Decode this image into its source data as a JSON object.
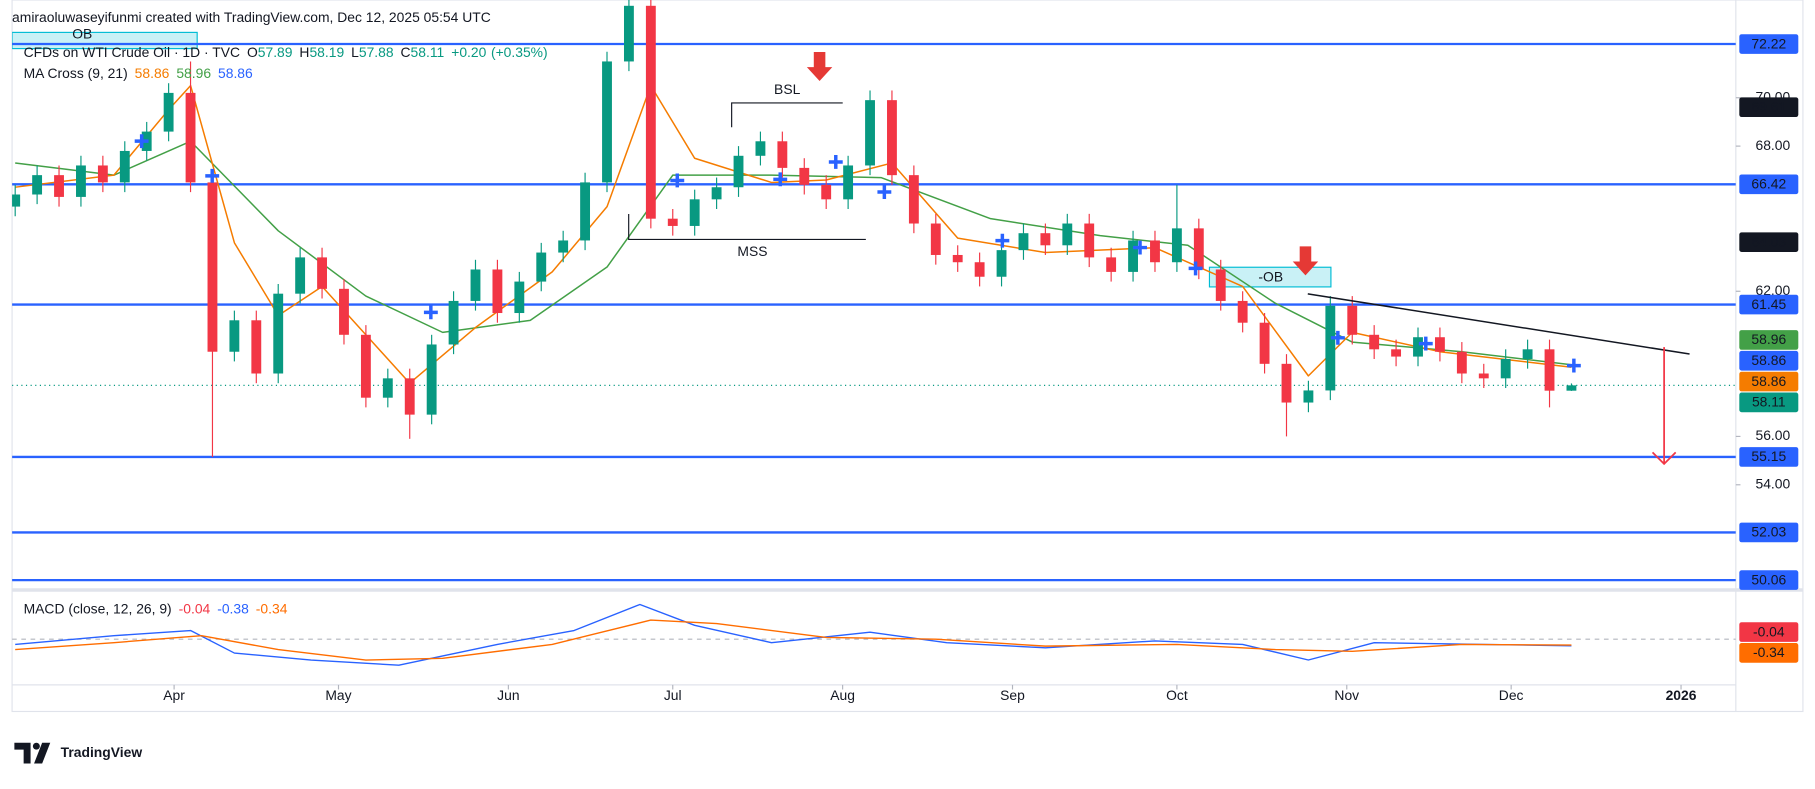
{
  "chart_data": {
    "type": "candlestick",
    "attribution": "amiraoluwaseyifunmi created with TradingView.com, Dec 12, 2025 05:54 UTC",
    "title": "CFDs on WTI Crude Oil · 1D · TVC",
    "header": {
      "o_label": "O",
      "open": 57.89,
      "h_label": "H",
      "high": 58.19,
      "l_label": "L",
      "low": 57.88,
      "c_label": "C",
      "close": 58.11,
      "change": {
        "value": 0.2,
        "label": "+0.20"
      },
      "change_pct": {
        "value": 0.35,
        "label": "(+0.35%)"
      }
    },
    "up_color": "#089981",
    "down_color": "#f23645",
    "x": [
      2,
      6,
      10,
      14,
      18,
      22,
      26,
      30,
      34,
      38,
      42,
      46,
      50,
      54,
      58,
      62,
      66,
      70,
      74,
      78,
      82,
      86,
      90,
      94,
      98,
      102,
      106,
      110,
      114,
      118,
      122,
      126,
      130,
      134,
      138,
      142,
      146,
      150,
      154,
      158,
      162,
      166,
      170,
      174,
      178,
      182,
      186,
      190,
      194,
      198,
      202,
      206,
      210,
      214,
      218,
      222,
      226,
      230,
      234,
      238,
      242,
      246,
      250,
      254,
      258,
      262,
      266,
      270,
      274,
      278,
      282,
      286
    ],
    "open": [
      65.5,
      66.0,
      66.8,
      65.9,
      67.2,
      66.5,
      67.8,
      68.6,
      70.2,
      66.5,
      59.5,
      60.8,
      58.6,
      61.9,
      63.4,
      62.1,
      60.2,
      57.6,
      58.4,
      56.9,
      59.8,
      61.6,
      62.9,
      61.1,
      62.4,
      63.6,
      64.1,
      66.5,
      71.5,
      73.8,
      65.0,
      64.7,
      65.8,
      66.3,
      67.6,
      68.2,
      67.1,
      66.4,
      65.8,
      67.2,
      69.9,
      66.8,
      64.8,
      63.5,
      63.2,
      62.6,
      63.7,
      64.4,
      63.9,
      64.8,
      63.4,
      62.8,
      64.1,
      63.2,
      64.6,
      62.9,
      61.6,
      60.7,
      59.0,
      57.4,
      57.9,
      61.4,
      60.2,
      59.6,
      59.3,
      60.1,
      59.5,
      58.6,
      58.4,
      59.2,
      59.6,
      57.89
    ],
    "high": [
      66.4,
      67.2,
      67.2,
      67.6,
      67.6,
      68.2,
      69.0,
      70.6,
      71.5,
      66.9,
      61.2,
      61.2,
      62.3,
      63.8,
      63.8,
      62.5,
      60.6,
      58.8,
      58.8,
      60.2,
      62.0,
      63.3,
      63.3,
      62.8,
      64.0,
      64.5,
      66.9,
      71.9,
      75.0,
      74.2,
      65.4,
      66.2,
      66.7,
      68.0,
      68.6,
      68.6,
      67.5,
      66.8,
      67.6,
      70.3,
      70.3,
      67.2,
      65.2,
      63.9,
      63.6,
      64.1,
      64.8,
      64.8,
      65.2,
      65.2,
      63.8,
      64.5,
      64.5,
      66.4,
      65.0,
      63.3,
      62.0,
      61.1,
      59.4,
      58.3,
      61.8,
      61.8,
      60.6,
      60.0,
      60.5,
      60.5,
      59.9,
      59.0,
      59.6,
      60.0,
      60.0,
      58.19
    ],
    "low": [
      65.1,
      65.6,
      65.5,
      65.5,
      66.1,
      66.1,
      67.4,
      68.2,
      66.1,
      55.15,
      59.1,
      58.2,
      58.2,
      61.5,
      61.7,
      59.8,
      57.2,
      57.2,
      55.9,
      56.5,
      59.4,
      61.2,
      60.7,
      60.7,
      62.0,
      63.2,
      63.7,
      66.1,
      71.1,
      64.6,
      64.3,
      64.3,
      65.4,
      65.9,
      67.2,
      66.7,
      66.0,
      65.4,
      65.4,
      66.8,
      66.4,
      64.4,
      63.1,
      62.8,
      62.2,
      62.2,
      63.3,
      63.5,
      63.5,
      63.0,
      62.4,
      62.4,
      62.8,
      62.8,
      62.5,
      61.2,
      60.3,
      58.6,
      56.0,
      57.0,
      57.5,
      59.8,
      59.2,
      58.9,
      58.9,
      59.1,
      58.2,
      58.0,
      58.0,
      58.8,
      57.2,
      57.88
    ],
    "close": [
      66.0,
      66.8,
      65.9,
      67.2,
      66.5,
      67.8,
      68.6,
      70.2,
      66.5,
      59.5,
      60.8,
      58.6,
      61.9,
      63.4,
      62.1,
      60.2,
      57.6,
      58.4,
      56.9,
      59.8,
      61.6,
      62.9,
      61.1,
      62.4,
      63.6,
      64.1,
      66.5,
      71.5,
      73.8,
      65.0,
      64.7,
      65.8,
      66.3,
      67.6,
      68.2,
      67.1,
      66.4,
      65.8,
      67.2,
      69.9,
      66.8,
      64.8,
      63.5,
      63.2,
      62.6,
      63.7,
      64.4,
      63.9,
      64.8,
      63.4,
      62.8,
      64.1,
      63.2,
      64.6,
      62.9,
      61.6,
      60.7,
      59.0,
      57.4,
      57.9,
      61.4,
      60.2,
      59.6,
      59.3,
      60.1,
      59.5,
      58.6,
      58.4,
      59.2,
      59.6,
      57.89,
      58.11
    ],
    "xlim": [
      1.43,
      316
    ],
    "xticks": [
      {
        "value": 31,
        "label": "Apr"
      },
      {
        "value": 61,
        "label": "May"
      },
      {
        "value": 92,
        "label": "Jun"
      },
      {
        "value": 122,
        "label": "Jul"
      },
      {
        "value": 153,
        "label": "Aug"
      },
      {
        "value": 184,
        "label": "Sep"
      },
      {
        "value": 214,
        "label": "Oct"
      },
      {
        "value": 245,
        "label": "Nov"
      },
      {
        "value": 275,
        "label": "Dec"
      },
      {
        "value": 306,
        "label": "2026"
      }
    ],
    "ylim": [
      49.65,
      74.04
    ],
    "yticks": [
      {
        "value": 54,
        "label": "54.00"
      },
      {
        "value": 56,
        "label": "56.00"
      },
      {
        "value": 62,
        "label": "62.00"
      },
      {
        "value": 68,
        "label": "68.00"
      },
      {
        "value": 70,
        "label": "70.00"
      }
    ],
    "ma_label": "MA Cross (9, 21)",
    "ma_fast": {
      "color": "#f57c00",
      "x": [
        2,
        20,
        30,
        34,
        42,
        50,
        58,
        66,
        74,
        86,
        100,
        110,
        118,
        126,
        140,
        150,
        162,
        174,
        190,
        210,
        226,
        238,
        246,
        262,
        286
      ],
      "values": [
        66.3,
        66.8,
        69.5,
        70.5,
        64.0,
        61.0,
        62.2,
        60.2,
        58.2,
        60.5,
        62.8,
        65.5,
        70.5,
        67.5,
        66.5,
        66.6,
        67.3,
        64.2,
        63.6,
        63.8,
        62.2,
        58.5,
        60.3,
        59.5,
        58.86
      ]
    },
    "ma_slow": {
      "color": "#43a047",
      "x": [
        2,
        20,
        34,
        50,
        66,
        80,
        96,
        110,
        122,
        140,
        160,
        180,
        200,
        216,
        232,
        246,
        266,
        286
      ],
      "values": [
        67.3,
        66.8,
        68.2,
        64.5,
        61.8,
        60.3,
        60.8,
        63.0,
        66.8,
        66.8,
        66.7,
        65.0,
        64.3,
        63.9,
        61.5,
        59.9,
        59.5,
        58.96
      ]
    },
    "levels": {
      "color": "#2962ff",
      "values": [
        72.22,
        66.42,
        61.45,
        55.15,
        52.03,
        50.06
      ]
    },
    "price_badges": [
      {
        "value": 69.61,
        "color": "#131722"
      },
      {
        "value": 64.03,
        "color": "#131722"
      },
      {
        "value": 58.96,
        "color": "#43a047"
      },
      {
        "value": 58.86,
        "color": "#2962ff"
      },
      {
        "value": 58.86,
        "color": "#f57c00"
      },
      {
        "value": 58.11,
        "color": "#089981"
      }
    ],
    "annotations": {
      "ob_top": "OB",
      "bsl": "BSL",
      "mss": "MSS",
      "ob": "-OB"
    },
    "macd": {
      "label": "MACD (close, 12, 26, 9)",
      "histogram": -0.04,
      "histogram_color": "#f23645",
      "ylim": [
        -2.5,
        2.5
      ],
      "macd": {
        "color": "#2962ff",
        "x": [
          2,
          20,
          34,
          42,
          56,
          72,
          90,
          104,
          116,
          126,
          140,
          158,
          172,
          190,
          210,
          226,
          238,
          250,
          270,
          286
        ],
        "values": [
          -0.3,
          0.2,
          0.5,
          -0.8,
          -1.2,
          -1.5,
          -0.3,
          0.5,
          2.0,
          0.8,
          -0.2,
          0.4,
          -0.2,
          -0.5,
          -0.1,
          -0.3,
          -1.2,
          -0.2,
          -0.3,
          -0.38
        ]
      },
      "signal": {
        "color": "#ff6d00",
        "x": [
          2,
          20,
          36,
          50,
          66,
          80,
          100,
          118,
          130,
          150,
          170,
          190,
          214,
          232,
          246,
          266,
          286
        ],
        "values": [
          -0.6,
          -0.2,
          0.2,
          -0.6,
          -1.2,
          -1.1,
          -0.3,
          1.1,
          0.9,
          0.1,
          0.0,
          -0.4,
          -0.3,
          -0.6,
          -0.7,
          -0.3,
          -0.34
        ]
      }
    },
    "brand": "TradingView"
  }
}
